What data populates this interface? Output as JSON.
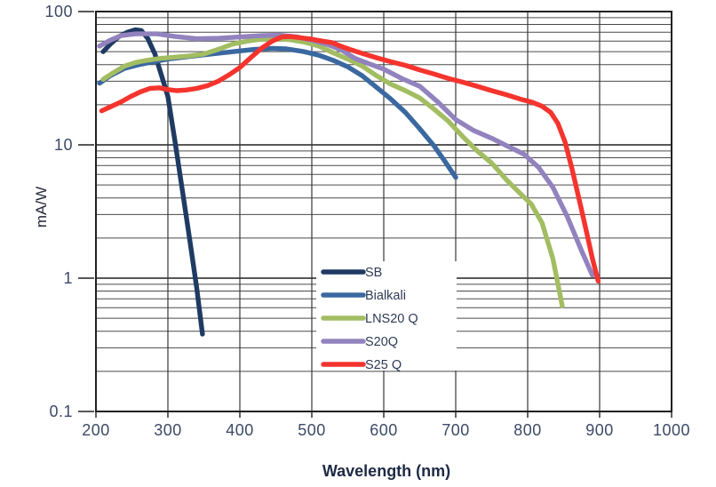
{
  "chart_data": {
    "type": "line",
    "title": "",
    "xlabel": "Wavelength (nm)",
    "ylabel": "mA/W",
    "x_axis": {
      "min": 200,
      "max": 1000,
      "ticks": [
        200,
        300,
        400,
        500,
        600,
        700,
        800,
        900,
        1000
      ]
    },
    "y_axis": {
      "scale": "log",
      "min": 0.1,
      "max": 100,
      "ticks": [
        100,
        10,
        1,
        0.1
      ],
      "tick_labels": [
        "100",
        "10",
        "1",
        "0.1"
      ]
    },
    "grid": {
      "x_major": true,
      "y_major": true,
      "y_minor_log": true
    },
    "legend_position": "inside-bottom-center",
    "series": [
      {
        "name": "SB",
        "color": "#1F3A63",
        "points": [
          [
            210,
            50
          ],
          [
            220,
            57
          ],
          [
            232,
            65
          ],
          [
            244,
            70
          ],
          [
            255,
            73
          ],
          [
            263,
            72
          ],
          [
            272,
            63
          ],
          [
            282,
            48
          ],
          [
            292,
            32
          ],
          [
            300,
            23
          ],
          [
            310,
            10.5
          ],
          [
            320,
            4.6
          ],
          [
            330,
            2.0
          ],
          [
            340,
            0.85
          ],
          [
            348,
            0.38
          ]
        ]
      },
      {
        "name": "Bialkali",
        "color": "#3A68A0",
        "points": [
          [
            205,
            29
          ],
          [
            220,
            33
          ],
          [
            240,
            37.5
          ],
          [
            260,
            40
          ],
          [
            280,
            42
          ],
          [
            300,
            44
          ],
          [
            330,
            46
          ],
          [
            360,
            48
          ],
          [
            390,
            50
          ],
          [
            420,
            52
          ],
          [
            445,
            53
          ],
          [
            465,
            52.5
          ],
          [
            490,
            50
          ],
          [
            510,
            47
          ],
          [
            530,
            43
          ],
          [
            550,
            38.5
          ],
          [
            570,
            33
          ],
          [
            590,
            27
          ],
          [
            610,
            22
          ],
          [
            630,
            17.5
          ],
          [
            650,
            13.2
          ],
          [
            670,
            9.8
          ],
          [
            685,
            7.5
          ],
          [
            700,
            5.7
          ]
        ]
      },
      {
        "name": "LNS20 Q",
        "color": "#A2BD62",
        "points": [
          [
            210,
            31
          ],
          [
            225,
            35
          ],
          [
            240,
            39
          ],
          [
            255,
            41.5
          ],
          [
            270,
            43
          ],
          [
            290,
            44.5
          ],
          [
            310,
            45.5
          ],
          [
            330,
            46.5
          ],
          [
            350,
            48
          ],
          [
            370,
            52
          ],
          [
            390,
            57
          ],
          [
            410,
            60
          ],
          [
            430,
            62
          ],
          [
            450,
            62.5
          ],
          [
            470,
            61.5
          ],
          [
            490,
            59
          ],
          [
            510,
            55
          ],
          [
            530,
            49
          ],
          [
            550,
            44
          ],
          [
            570,
            39
          ],
          [
            590,
            33
          ],
          [
            610,
            28.5
          ],
          [
            630,
            25.5
          ],
          [
            650,
            22.5
          ],
          [
            670,
            18.5
          ],
          [
            690,
            15
          ],
          [
            710,
            11.5
          ],
          [
            730,
            9
          ],
          [
            750,
            7.3
          ],
          [
            770,
            5.5
          ],
          [
            790,
            4.3
          ],
          [
            805,
            3.6
          ],
          [
            820,
            2.6
          ],
          [
            835,
            1.4
          ],
          [
            848,
            0.62
          ]
        ]
      },
      {
        "name": "S20Q",
        "color": "#9282BE",
        "points": [
          [
            205,
            55
          ],
          [
            220,
            61
          ],
          [
            235,
            66
          ],
          [
            255,
            68
          ],
          [
            285,
            68
          ],
          [
            310,
            65
          ],
          [
            340,
            62.5
          ],
          [
            370,
            63
          ],
          [
            400,
            64.5
          ],
          [
            430,
            66
          ],
          [
            455,
            66.5
          ],
          [
            480,
            64.5
          ],
          [
            500,
            61
          ],
          [
            520,
            57
          ],
          [
            540,
            52
          ],
          [
            560,
            44.5
          ],
          [
            580,
            40.5
          ],
          [
            600,
            37
          ],
          [
            625,
            31.5
          ],
          [
            650,
            27.5
          ],
          [
            675,
            21
          ],
          [
            700,
            15.5
          ],
          [
            725,
            12.8
          ],
          [
            750,
            11.2
          ],
          [
            775,
            9.6
          ],
          [
            795,
            8.5
          ],
          [
            815,
            6.8
          ],
          [
            835,
            4.8
          ],
          [
            855,
            2.9
          ],
          [
            875,
            1.6
          ],
          [
            890,
            1.05
          ]
        ]
      },
      {
        "name": "S25 Q",
        "color": "#F5342E",
        "points": [
          [
            208,
            18
          ],
          [
            222,
            19.5
          ],
          [
            235,
            21
          ],
          [
            248,
            23
          ],
          [
            262,
            25
          ],
          [
            275,
            26.5
          ],
          [
            288,
            26.8
          ],
          [
            300,
            26
          ],
          [
            312,
            25.5
          ],
          [
            325,
            25.8
          ],
          [
            340,
            26.5
          ],
          [
            355,
            27.8
          ],
          [
            370,
            30
          ],
          [
            385,
            33.5
          ],
          [
            400,
            38
          ],
          [
            415,
            45
          ],
          [
            430,
            53
          ],
          [
            445,
            60
          ],
          [
            458,
            64.5
          ],
          [
            470,
            65
          ],
          [
            485,
            63.5
          ],
          [
            500,
            62
          ],
          [
            515,
            60
          ],
          [
            528,
            58.5
          ],
          [
            540,
            55
          ],
          [
            555,
            51.5
          ],
          [
            570,
            48.5
          ],
          [
            590,
            45
          ],
          [
            610,
            42
          ],
          [
            630,
            39.5
          ],
          [
            650,
            36.5
          ],
          [
            670,
            34
          ],
          [
            690,
            31.5
          ],
          [
            710,
            29.5
          ],
          [
            730,
            27.5
          ],
          [
            750,
            25.5
          ],
          [
            770,
            23.8
          ],
          [
            790,
            22
          ],
          [
            805,
            21
          ],
          [
            820,
            19.5
          ],
          [
            832,
            17.5
          ],
          [
            842,
            14.5
          ],
          [
            852,
            10.5
          ],
          [
            862,
            6.5
          ],
          [
            872,
            3.8
          ],
          [
            882,
            2.2
          ],
          [
            890,
            1.4
          ],
          [
            898,
            0.95
          ]
        ]
      }
    ]
  }
}
